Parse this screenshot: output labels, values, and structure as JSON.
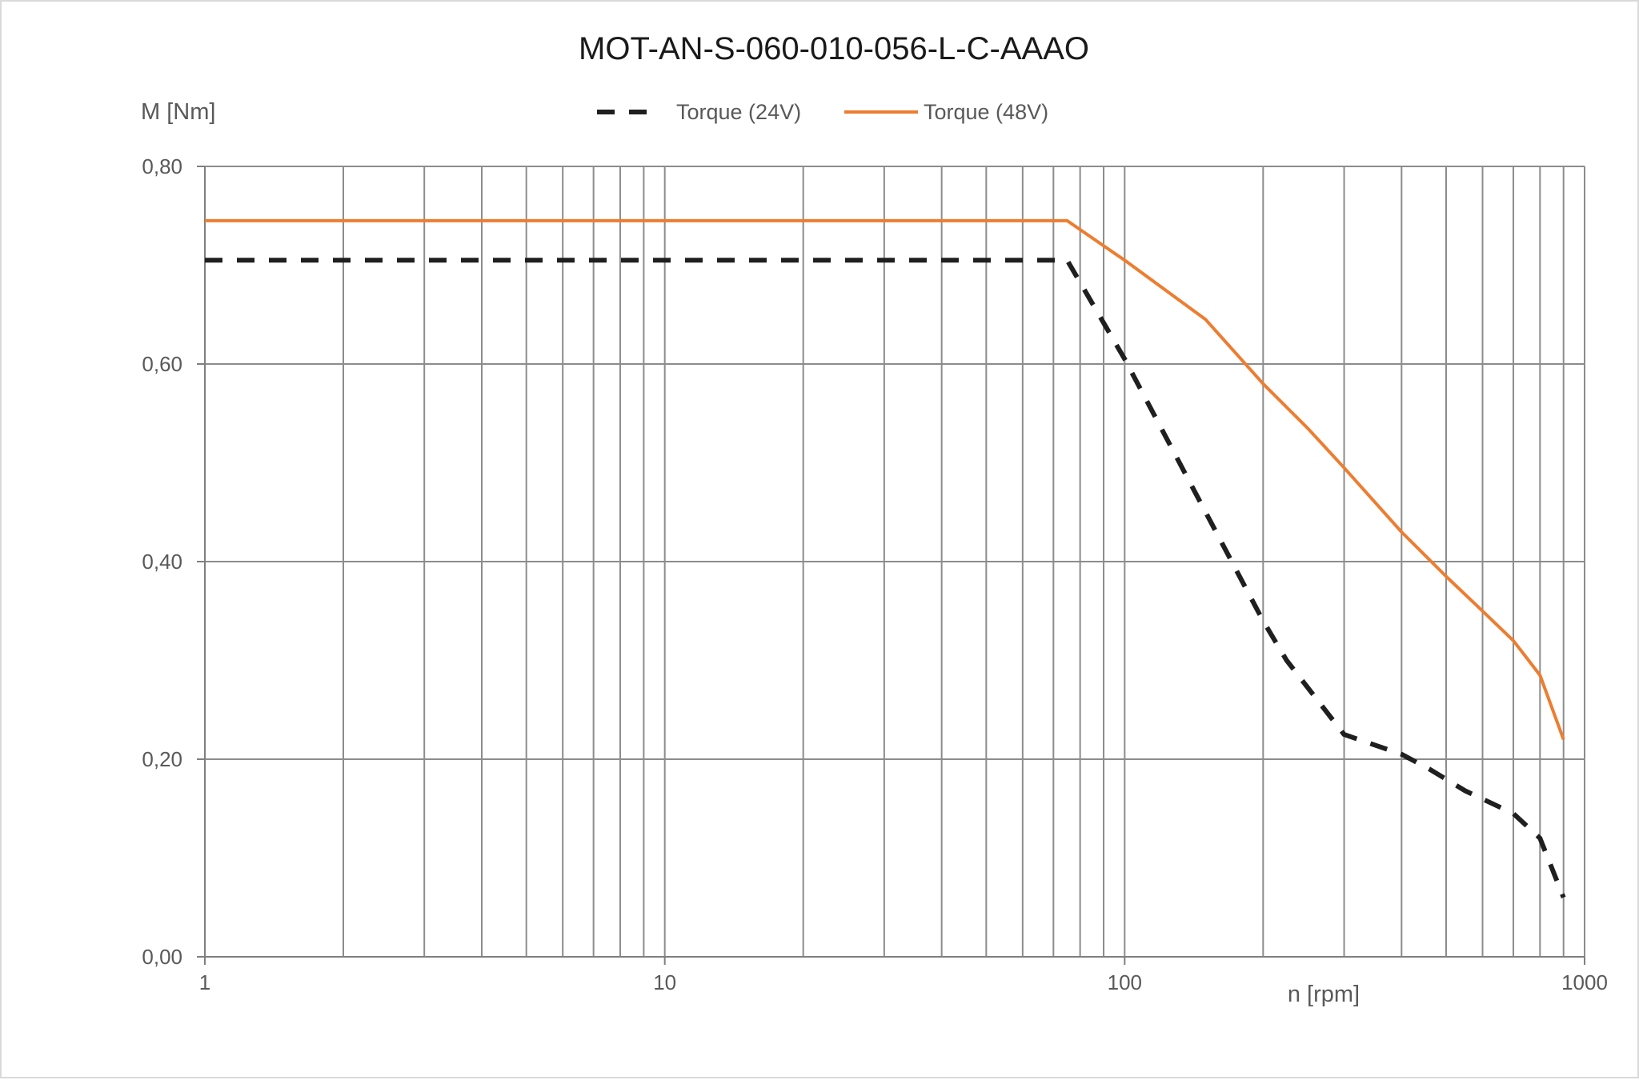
{
  "chart_data": {
    "type": "line",
    "title": "MOT-AN-S-060-010-056-L-C-AAAO",
    "xlabel": "n [rpm]",
    "ylabel": "M [Nm]",
    "x_scale": "log",
    "xlim": [
      1,
      1000
    ],
    "ylim": [
      0,
      0.8
    ],
    "grid": true,
    "legend_position": "top",
    "x_tick_labels": [
      "1",
      "10",
      "100",
      "1000"
    ],
    "y_tick_labels": [
      "0,00",
      "0,20",
      "0,40",
      "0,60",
      "0,80"
    ],
    "series": [
      {
        "name": "Torque (24V)",
        "color": "#1f1f1f",
        "style": "dashed",
        "x": [
          1,
          75,
          100,
          150,
          200,
          225,
          300,
          400,
          460,
          550,
          700,
          800,
          900
        ],
        "y": [
          0.705,
          0.705,
          0.605,
          0.45,
          0.34,
          0.3,
          0.225,
          0.205,
          0.19,
          0.168,
          0.145,
          0.12,
          0.06
        ]
      },
      {
        "name": "Torque (48V)",
        "color": "#ed7d31",
        "style": "solid",
        "x": [
          1,
          75,
          100,
          150,
          200,
          250,
          300,
          400,
          500,
          600,
          700,
          800,
          900
        ],
        "y": [
          0.745,
          0.745,
          0.705,
          0.645,
          0.58,
          0.535,
          0.495,
          0.43,
          0.385,
          0.35,
          0.32,
          0.285,
          0.22
        ]
      }
    ]
  }
}
